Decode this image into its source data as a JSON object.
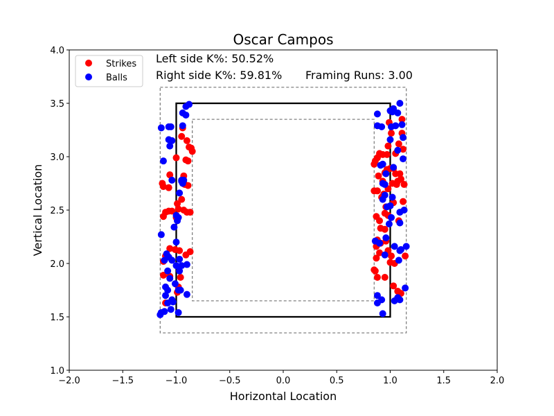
{
  "chart_data": {
    "type": "scatter",
    "title": "Oscar Campos",
    "xlabel": "Horizontal Location",
    "ylabel": "Vertical Location",
    "xlim": [
      -2.0,
      2.0
    ],
    "ylim": [
      1.0,
      4.0
    ],
    "xticks": [
      "−2.0",
      "−1.5",
      "−1.0",
      "−0.5",
      "0.0",
      "0.5",
      "1.0",
      "1.5",
      "2.0"
    ],
    "yticks": [
      "1.0",
      "1.5",
      "2.0",
      "2.5",
      "3.0",
      "3.5",
      "4.0"
    ],
    "grid": false,
    "legend_position": "top-left",
    "annotations": {
      "left_k": "Left side K%: 50.52%",
      "right_k": "Right side K%: 59.81%",
      "framing": "Framing Runs: 3.00"
    },
    "zones": {
      "strike_zone": {
        "x": [
          -1.0,
          1.0
        ],
        "y": [
          1.5,
          3.5
        ]
      },
      "outer_zone": {
        "x": [
          -1.15,
          1.15
        ],
        "y": [
          1.35,
          3.65
        ]
      },
      "inner_zone": {
        "x": [
          -0.85,
          0.85
        ],
        "y": [
          1.65,
          3.35
        ]
      }
    },
    "series": [
      {
        "name": "Strikes",
        "color": "#ff0000",
        "points": [
          [
            -1.13,
            2.75
          ],
          [
            -1.12,
            2.72
          ],
          [
            -1.07,
            2.71
          ],
          [
            -1.06,
            2.83
          ],
          [
            -1.12,
            2.44
          ],
          [
            -1.1,
            2.48
          ],
          [
            -1.07,
            2.49
          ],
          [
            -1.04,
            2.49
          ],
          [
            -1.0,
            2.43
          ],
          [
            -0.99,
            2.56
          ],
          [
            -0.98,
            2.51
          ],
          [
            -0.95,
            2.6
          ],
          [
            -0.93,
            2.5
          ],
          [
            -0.9,
            2.48
          ],
          [
            -0.87,
            2.48
          ],
          [
            -0.92,
            2.74
          ],
          [
            -0.89,
            2.73
          ],
          [
            -0.93,
            2.82
          ],
          [
            -0.91,
            2.97
          ],
          [
            -0.89,
            2.96
          ],
          [
            -0.86,
            3.08
          ],
          [
            -0.88,
            3.09
          ],
          [
            -0.85,
            3.05
          ],
          [
            -0.9,
            3.15
          ],
          [
            -0.95,
            3.19
          ],
          [
            -0.94,
            3.27
          ],
          [
            -1.0,
            2.99
          ],
          [
            -1.06,
            2.14
          ],
          [
            -1.01,
            2.13
          ],
          [
            -0.97,
            2.12
          ],
          [
            -0.91,
            2.08
          ],
          [
            -0.87,
            2.11
          ],
          [
            -1.12,
            2.02
          ],
          [
            -1.1,
            2.07
          ],
          [
            -1.06,
            1.88
          ],
          [
            -1.12,
            1.89
          ],
          [
            -0.96,
            1.87
          ],
          [
            -0.99,
            1.73
          ],
          [
            -1.1,
            1.63
          ],
          [
            -0.98,
            1.78
          ],
          [
            0.86,
            2.96
          ],
          [
            0.88,
            2.99
          ],
          [
            0.9,
            3.03
          ],
          [
            0.93,
            3.02
          ],
          [
            0.97,
            3.02
          ],
          [
            0.85,
            2.93
          ],
          [
            0.89,
            2.82
          ],
          [
            0.93,
            2.77
          ],
          [
            0.95,
            2.85
          ],
          [
            0.97,
            2.88
          ],
          [
            1.0,
            2.89
          ],
          [
            1.03,
            2.89
          ],
          [
            1.05,
            2.84
          ],
          [
            1.09,
            2.84
          ],
          [
            1.07,
            2.77
          ],
          [
            1.1,
            2.79
          ],
          [
            1.13,
            2.74
          ],
          [
            1.06,
            2.74
          ],
          [
            1.02,
            2.75
          ],
          [
            0.98,
            2.7
          ],
          [
            0.94,
            2.65
          ],
          [
            0.92,
            2.62
          ],
          [
            0.88,
            2.68
          ],
          [
            0.85,
            2.68
          ],
          [
            0.98,
            3.1
          ],
          [
            1.01,
            3.22
          ],
          [
            1.05,
            3.03
          ],
          [
            1.08,
            3.12
          ],
          [
            1.12,
            3.07
          ],
          [
            1.11,
            3.22
          ],
          [
            1.11,
            3.35
          ],
          [
            0.99,
            3.32
          ],
          [
            0.87,
            2.44
          ],
          [
            0.9,
            2.4
          ],
          [
            0.95,
            2.47
          ],
          [
            0.98,
            2.45
          ],
          [
            1.03,
            2.57
          ],
          [
            1.08,
            2.4
          ],
          [
            1.12,
            2.58
          ],
          [
            0.91,
            2.33
          ],
          [
            0.95,
            2.32
          ],
          [
            0.88,
            2.22
          ],
          [
            0.87,
            2.16
          ],
          [
            0.91,
            2.19
          ],
          [
            0.96,
            2.21
          ],
          [
            0.98,
            2.12
          ],
          [
            1.01,
            2.07
          ],
          [
            1.04,
            2.0
          ],
          [
            0.87,
            2.05
          ],
          [
            0.9,
            2.1
          ],
          [
            0.86,
            1.93
          ],
          [
            0.88,
            1.87
          ],
          [
            0.95,
            1.87
          ],
          [
            1.14,
            2.07
          ],
          [
            1.03,
            1.79
          ],
          [
            1.07,
            1.74
          ],
          [
            1.1,
            1.72
          ],
          [
            0.85,
            1.94
          ],
          [
            1.0,
            2.01
          ],
          [
            0.96,
            2.53
          ]
        ]
      },
      {
        "name": "Balls",
        "color": "#0000ff",
        "points": [
          [
            -1.14,
            3.27
          ],
          [
            -1.07,
            3.28
          ],
          [
            -1.05,
            3.28
          ],
          [
            -1.07,
            3.16
          ],
          [
            -1.04,
            3.15
          ],
          [
            -1.06,
            3.1
          ],
          [
            -1.12,
            2.96
          ],
          [
            -1.14,
            2.27
          ],
          [
            -1.11,
            2.03
          ],
          [
            -1.07,
            2.06
          ],
          [
            -1.09,
            2.09
          ],
          [
            -1.04,
            2.03
          ],
          [
            -1.0,
            2.2
          ],
          [
            -1.02,
            2.34
          ],
          [
            -1.0,
            2.45
          ],
          [
            -0.98,
            2.43
          ],
          [
            -0.95,
            2.78
          ],
          [
            -0.95,
            2.77
          ],
          [
            -0.97,
            2.66
          ],
          [
            -0.93,
            2.78
          ],
          [
            -0.94,
            2.75
          ],
          [
            -0.94,
            3.29
          ],
          [
            -0.94,
            3.41
          ],
          [
            -0.91,
            3.39
          ],
          [
            -0.91,
            3.47
          ],
          [
            -0.88,
            3.49
          ],
          [
            -1.0,
            1.98
          ],
          [
            -0.95,
            1.98
          ],
          [
            -0.9,
            1.99
          ],
          [
            -0.97,
            2.04
          ],
          [
            -0.97,
            1.93
          ],
          [
            -1.08,
            1.93
          ],
          [
            -1.06,
            1.86
          ],
          [
            -1.01,
            1.81
          ],
          [
            -0.98,
            1.75
          ],
          [
            -0.96,
            1.75
          ],
          [
            -1.1,
            1.78
          ],
          [
            -1.08,
            1.75
          ],
          [
            -1.1,
            1.7
          ],
          [
            -1.08,
            1.63
          ],
          [
            -1.04,
            1.66
          ],
          [
            -1.03,
            1.64
          ],
          [
            -1.11,
            1.55
          ],
          [
            -1.15,
            1.52
          ],
          [
            -1.14,
            1.54
          ],
          [
            -1.05,
            1.57
          ],
          [
            -0.98,
            1.54
          ],
          [
            -0.9,
            1.71
          ],
          [
            -1.04,
            2.78
          ],
          [
            -0.99,
            2.4
          ],
          [
            0.88,
            3.4
          ],
          [
            0.88,
            3.29
          ],
          [
            0.92,
            3.28
          ],
          [
            1.0,
            3.43
          ],
          [
            1.02,
            3.42
          ],
          [
            1.03,
            3.45
          ],
          [
            1.07,
            3.41
          ],
          [
            1.09,
            3.5
          ],
          [
            1.01,
            3.28
          ],
          [
            1.05,
            3.29
          ],
          [
            1.11,
            3.3
          ],
          [
            1.12,
            3.18
          ],
          [
            1.07,
            3.06
          ],
          [
            1.12,
            2.98
          ],
          [
            1.0,
            3.16
          ],
          [
            0.93,
            2.93
          ],
          [
            0.91,
            2.92
          ],
          [
            0.93,
            2.75
          ],
          [
            0.93,
            2.6
          ],
          [
            0.95,
            2.64
          ],
          [
            0.95,
            2.74
          ],
          [
            1.02,
            2.62
          ],
          [
            1.13,
            2.5
          ],
          [
            1.09,
            2.48
          ],
          [
            1.09,
            2.38
          ],
          [
            1.01,
            2.43
          ],
          [
            0.99,
            2.37
          ],
          [
            0.96,
            2.24
          ],
          [
            0.86,
            2.21
          ],
          [
            0.9,
            2.19
          ],
          [
            0.95,
            2.08
          ],
          [
            1.04,
            2.16
          ],
          [
            1.09,
            2.12
          ],
          [
            1.1,
            2.13
          ],
          [
            1.15,
            2.16
          ],
          [
            1.08,
            2.03
          ],
          [
            0.88,
            1.7
          ],
          [
            0.88,
            1.63
          ],
          [
            0.92,
            1.66
          ],
          [
            1.04,
            1.65
          ],
          [
            1.07,
            1.68
          ],
          [
            1.09,
            1.66
          ],
          [
            1.14,
            1.77
          ],
          [
            0.93,
            1.53
          ],
          [
            0.97,
            2.53
          ],
          [
            1.03,
            2.9
          ],
          [
            0.96,
            2.84
          ],
          [
            1.0,
            2.54
          ]
        ]
      }
    ]
  }
}
